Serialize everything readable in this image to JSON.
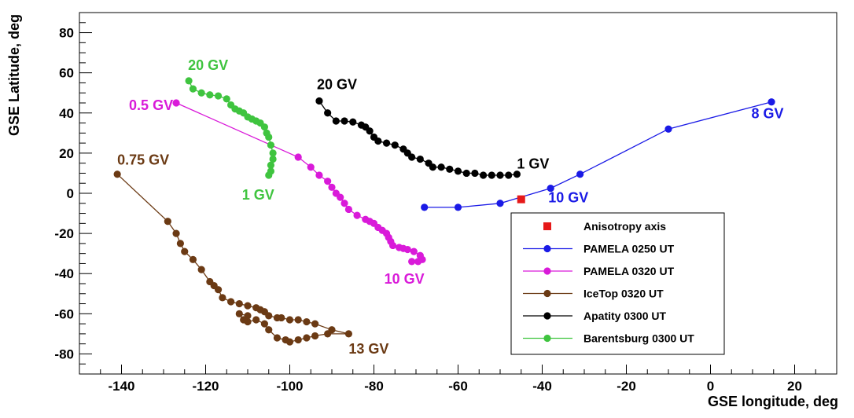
{
  "chart_data": {
    "type": "line",
    "xlabel": "GSE longitude, deg",
    "ylabel": "GSE Latitude, deg",
    "xlim": [
      -150,
      30
    ],
    "ylim": [
      -90,
      90
    ],
    "x_ticks": [
      -140,
      -120,
      -100,
      -80,
      -60,
      -40,
      -20,
      0,
      20
    ],
    "y_ticks": [
      -80,
      -60,
      -40,
      -20,
      0,
      20,
      40,
      60,
      80
    ],
    "grid": false,
    "legend_position": "bottom-right",
    "marker_series": [
      {
        "name": "Anisotropy axis",
        "color": "#e61919",
        "marker": "square",
        "points": [
          [
            -45,
            -3
          ]
        ]
      }
    ],
    "series": [
      {
        "name": "PAMELA 0250 UT",
        "color": "#1a1ae6",
        "points": [
          [
            -68,
            -7
          ],
          [
            -60,
            -7
          ],
          [
            -50,
            -5
          ],
          [
            -38,
            2.5
          ],
          [
            -31,
            9.5
          ],
          [
            -10,
            32
          ],
          [
            14.5,
            45.5
          ]
        ],
        "labels": [
          {
            "text": "8 GV",
            "x": 14.5,
            "y": 45.5
          },
          {
            "text": "10 GV",
            "x": -38,
            "y": 2.5
          }
        ]
      },
      {
        "name": "PAMELA 0320 UT",
        "color": "#d91ad9",
        "points": [
          [
            -127,
            45
          ],
          [
            -98,
            18
          ],
          [
            -95,
            13
          ],
          [
            -93,
            9
          ],
          [
            -91,
            6
          ],
          [
            -90,
            3
          ],
          [
            -89,
            0
          ],
          [
            -88,
            -2
          ],
          [
            -87,
            -5
          ],
          [
            -86,
            -8
          ],
          [
            -84,
            -11
          ],
          [
            -82,
            -13
          ],
          [
            -81,
            -14
          ],
          [
            -80,
            -15
          ],
          [
            -79,
            -17
          ],
          [
            -78,
            -18.5
          ],
          [
            -77,
            -20
          ],
          [
            -76.5,
            -22
          ],
          [
            -76,
            -24
          ],
          [
            -75.5,
            -26
          ],
          [
            -74,
            -27
          ],
          [
            -73,
            -27.5
          ],
          [
            -72,
            -28
          ],
          [
            -70.5,
            -29
          ],
          [
            -69,
            -31
          ],
          [
            -68.5,
            -33
          ],
          [
            -69.5,
            -34
          ],
          [
            -71,
            -34
          ]
        ],
        "labels": [
          {
            "text": "0.5 GV",
            "x": -127,
            "y": 45
          },
          {
            "text": "10 GV",
            "x": -71,
            "y": -34
          }
        ]
      },
      {
        "name": "IceTop 0320 UT",
        "color": "#6b3a14",
        "points": [
          [
            -141,
            9.5
          ],
          [
            -129,
            -14
          ],
          [
            -127,
            -20
          ],
          [
            -126,
            -25
          ],
          [
            -125,
            -29
          ],
          [
            -123,
            -33
          ],
          [
            -121,
            -38
          ],
          [
            -119,
            -44
          ],
          [
            -118,
            -46
          ],
          [
            -117,
            -48
          ],
          [
            -116,
            -52
          ],
          [
            -114,
            -54
          ],
          [
            -112,
            -55
          ],
          [
            -110,
            -56
          ],
          [
            -108,
            -57
          ],
          [
            -107,
            -58
          ],
          [
            -106,
            -59
          ],
          [
            -105,
            -61
          ],
          [
            -103,
            -62
          ],
          [
            -102,
            -62
          ],
          [
            -100,
            -63
          ],
          [
            -98,
            -63
          ],
          [
            -96,
            -64
          ],
          [
            -94,
            -65
          ],
          [
            -90,
            -68
          ],
          [
            -86,
            -70
          ],
          [
            -91,
            -70
          ],
          [
            -94,
            -71
          ],
          [
            -96,
            -72
          ],
          [
            -98,
            -73
          ],
          [
            -100,
            -74
          ],
          [
            -101,
            -73
          ],
          [
            -103,
            -72
          ],
          [
            -105,
            -68
          ],
          [
            -106,
            -65
          ],
          [
            -108,
            -63
          ],
          [
            -110,
            -64
          ],
          [
            -111,
            -63
          ],
          [
            -112,
            -60
          ],
          [
            -110,
            -61
          ]
        ],
        "labels": [
          {
            "text": "0.75 GV",
            "x": -141,
            "y": 9.5
          },
          {
            "text": "13 GV",
            "x": -86,
            "y": -70
          }
        ]
      },
      {
        "name": "Apatity 0300 UT",
        "color": "#000000",
        "points": [
          [
            -93,
            46
          ],
          [
            -91,
            40
          ],
          [
            -89,
            36
          ],
          [
            -87,
            36
          ],
          [
            -85,
            35.5
          ],
          [
            -83,
            34
          ],
          [
            -82,
            33
          ],
          [
            -81,
            31
          ],
          [
            -80,
            28
          ],
          [
            -79,
            26
          ],
          [
            -77,
            25
          ],
          [
            -75,
            24
          ],
          [
            -73,
            22
          ],
          [
            -72,
            20
          ],
          [
            -71,
            18
          ],
          [
            -69,
            17
          ],
          [
            -67,
            15
          ],
          [
            -66,
            13
          ],
          [
            -64,
            13
          ],
          [
            -62,
            12
          ],
          [
            -60,
            11
          ],
          [
            -58,
            10
          ],
          [
            -56,
            10
          ],
          [
            -54,
            9
          ],
          [
            -52,
            9
          ],
          [
            -50,
            9
          ],
          [
            -48,
            9
          ],
          [
            -46,
            9.5
          ]
        ],
        "labels": [
          {
            "text": "20 GV",
            "x": -93,
            "y": 46
          },
          {
            "text": "1 GV",
            "x": -46,
            "y": 9.5
          }
        ]
      },
      {
        "name": "Barentsburg 0300 UT",
        "color": "#3fc43f",
        "points": [
          [
            -124,
            56
          ],
          [
            -123,
            52
          ],
          [
            -121,
            50
          ],
          [
            -119,
            49
          ],
          [
            -117,
            48.5
          ],
          [
            -115,
            47
          ],
          [
            -114,
            44
          ],
          [
            -113,
            42
          ],
          [
            -112,
            41
          ],
          [
            -111,
            40
          ],
          [
            -110,
            38
          ],
          [
            -109,
            37
          ],
          [
            -108,
            36
          ],
          [
            -107,
            35
          ],
          [
            -106,
            33
          ],
          [
            -105.5,
            30
          ],
          [
            -105,
            28
          ],
          [
            -104.5,
            24
          ],
          [
            -104,
            20
          ],
          [
            -104,
            17
          ],
          [
            -104.5,
            14
          ],
          [
            -104.5,
            11
          ],
          [
            -105,
            9
          ]
        ],
        "labels": [
          {
            "text": "20 GV",
            "x": -124,
            "y": 56
          },
          {
            "text": "1 GV",
            "x": -105,
            "y": 9
          }
        ]
      }
    ]
  }
}
